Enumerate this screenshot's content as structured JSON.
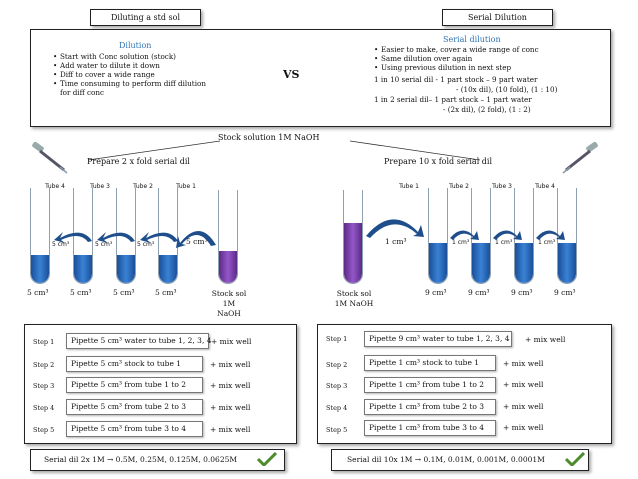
{
  "header": {
    "left_title": "Diluting a std sol",
    "right_title": "Serial Dilution"
  },
  "comparison": {
    "dilution_heading": "Dilution",
    "dilution_points": [
      "Start with Conc solution (stock)",
      "Add water to dilute it down",
      "Diff to cover a wide range",
      "Time consuming to perform diff dilution for diff conc"
    ],
    "vs": "VS",
    "serial_heading": "Serial dilution",
    "serial_points": [
      "Easier to make, cover a wide range of conc",
      "Same dilution over again",
      "Using previous dilution in next step"
    ],
    "ratio_lines": [
      "1 in 10 serial dil -  1 part stock – 9 part water",
      "- (10x dil), (10 fold), (1 : 10)",
      "1 in 2 serial dil– 1 part stock – 1 part water",
      "- (2x dil), (2 fold), (1 : 2)"
    ]
  },
  "stock_title": "Stock solution 1M NaOH",
  "left_panel": {
    "title": "Prepare 2 x fold serial dil",
    "tubes": [
      {
        "label": "Tube 4",
        "volume": "5 cm³"
      },
      {
        "label": "Tube 3",
        "volume": "5 cm³"
      },
      {
        "label": "Tube 2",
        "volume": "5 cm³"
      },
      {
        "label": "Tube 1",
        "volume": "5 cm³"
      }
    ],
    "transfers": [
      "5 cm³",
      "5 cm³",
      "5 cm³",
      "5 cm³"
    ],
    "stock_label": "Stock sol 1M NaOH",
    "steps": [
      {
        "step": "Step 1",
        "action": "Pipette 5 cm³ water to tube 1, 2, 3, 4",
        "mix": "+  mix well"
      },
      {
        "step": "Step 2",
        "action": "Pipette 5 cm³ stock to tube 1",
        "mix": "+ mix well"
      },
      {
        "step": "Step 3",
        "action": "Pipette 5 cm³ from tube 1 to 2",
        "mix": "+ mix well"
      },
      {
        "step": "Step 4",
        "action": "Pipette 5 cm³ from tube 2 to 3",
        "mix": "+ mix well"
      },
      {
        "step": "Step 5",
        "action": "Pipette 5 cm³ from tube 3 to 4",
        "mix": "+ mix well"
      }
    ],
    "summary": "Serial dil 2x  1M → 0.5M, 0.25M, 0.125M, 0.0625M"
  },
  "right_panel": {
    "title": "Prepare 10 x fold serial dil",
    "tubes": [
      {
        "label": "Tube 1",
        "volume": "9 cm³"
      },
      {
        "label": "Tube 2",
        "volume": "9 cm³"
      },
      {
        "label": "Tube 3",
        "volume": "9 cm³"
      },
      {
        "label": "Tube 4",
        "volume": "9 cm³"
      }
    ],
    "transfers": [
      "1 cm³",
      "1 cm³",
      "1 cm³",
      "1 cm³"
    ],
    "stock_label": "Stock sol 1M NaOH",
    "steps": [
      {
        "step": "Step 1",
        "action": "Pipette 9 cm³ water to tube 1, 2, 3, 4",
        "mix": "+  mix well"
      },
      {
        "step": "Step 2",
        "action": "Pipette 1 cm³ stock to tube 1",
        "mix": "+  mix well"
      },
      {
        "step": "Step 3",
        "action": "Pipette 1 cm³ from tube 1 to 2",
        "mix": "+  mix well"
      },
      {
        "step": "Step 4",
        "action": "Pipette 1 cm³ from tube 2 to 3",
        "mix": "+  mix well"
      },
      {
        "step": "Step 5",
        "action": "Pipette 1 cm³ from tube 3 to 4",
        "mix": "+  mix well"
      }
    ],
    "summary": "Serial dil 10x  1M → 0.1M, 0.01M, 0.001M, 0.0001M"
  },
  "colors": {
    "heading_blue": "#2e74b5",
    "solution_blue": "#2f6fc4",
    "stock_purple": "#7a3fb0",
    "arrow_blue": "#1f4e8c",
    "check_green": "#4c8c2b"
  }
}
